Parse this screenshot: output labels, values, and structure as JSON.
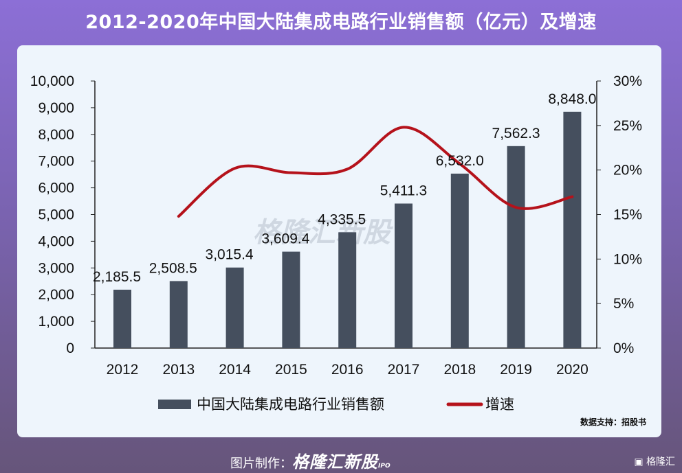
{
  "chart_data": {
    "type": "bar+line",
    "title": "2012-2020年中国大陆集成电路行业销售额（亿元）及增速",
    "categories": [
      "2012",
      "2013",
      "2014",
      "2015",
      "2016",
      "2017",
      "2018",
      "2019",
      "2020"
    ],
    "series": [
      {
        "name": "中国大陆集成电路行业销售额",
        "type": "bar",
        "axis": "left",
        "color": "#454f5e",
        "values": [
          2185.5,
          2508.5,
          3015.4,
          3609.4,
          4335.5,
          5411.3,
          6532.0,
          7562.3,
          8848.0
        ],
        "labels": [
          "2,185.5",
          "2,508.5",
          "3,015.4",
          "3,609.4",
          "4,335.5",
          "5,411.3",
          "6,532.0",
          "7,562.3",
          "8,848.0"
        ]
      },
      {
        "name": "增速",
        "type": "line",
        "axis": "right",
        "color": "#b5121b",
        "values": [
          null,
          14.8,
          20.2,
          19.7,
          20.1,
          24.8,
          20.7,
          15.8,
          17.0
        ]
      }
    ],
    "y_left": {
      "range": [
        0,
        10000
      ],
      "ticks": [
        "0",
        "1,000",
        "2,000",
        "3,000",
        "4,000",
        "5,000",
        "6,000",
        "7,000",
        "8,000",
        "9,000",
        "10,000"
      ]
    },
    "y_right": {
      "range": [
        0,
        30
      ],
      "unit": "%",
      "ticks": [
        "0%",
        "5%",
        "10%",
        "15%",
        "20%",
        "25%",
        "30%"
      ]
    },
    "legend": "bottom"
  },
  "source": "数据支持：招股书",
  "footer": {
    "label": "图片制作：",
    "logo": "格隆汇新股",
    "logo_sub": "IPO"
  },
  "brand": "格隆汇",
  "watermark": "格隆汇新股"
}
